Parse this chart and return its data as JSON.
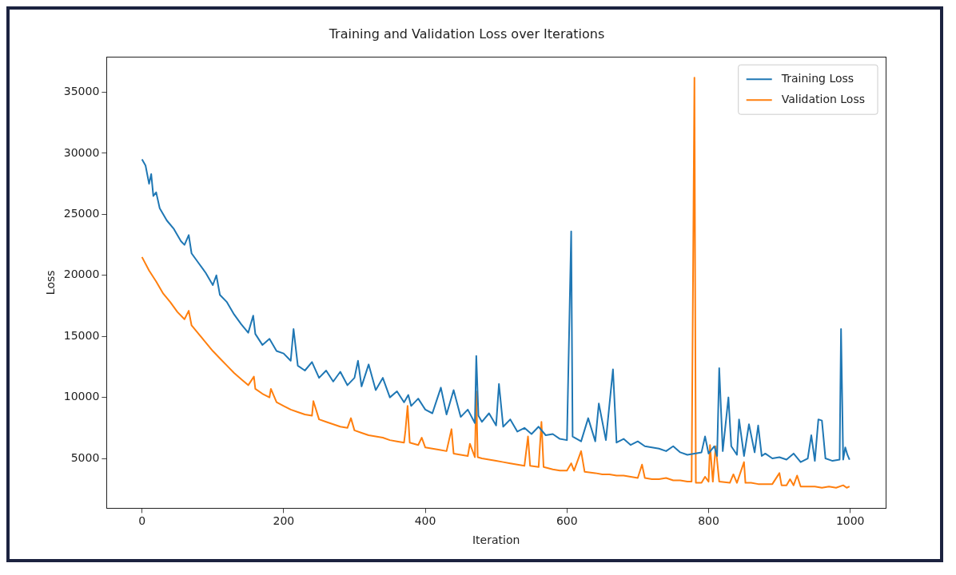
{
  "chart_data": {
    "type": "line",
    "title": "Training and Validation Loss over Iterations",
    "xlabel": "Iteration",
    "ylabel": "Loss",
    "xlim": [
      -50,
      1050
    ],
    "xticks": [
      0,
      200,
      400,
      600,
      800,
      1000
    ],
    "ylim": [
      920,
      37900
    ],
    "yticks": [
      5000,
      10000,
      15000,
      20000,
      25000,
      30000,
      35000
    ],
    "grid": false,
    "legend": "top right",
    "line_style": "solid",
    "marker": "none",
    "series": [
      {
        "name": "Training Loss",
        "color": "#1f77b4",
        "x": [
          0,
          5,
          10,
          13,
          16,
          20,
          25,
          35,
          45,
          55,
          60,
          66,
          70,
          80,
          90,
          100,
          105,
          110,
          120,
          130,
          140,
          150,
          157,
          160,
          170,
          180,
          190,
          200,
          210,
          214,
          220,
          230,
          240,
          250,
          260,
          270,
          280,
          290,
          300,
          305,
          310,
          320,
          330,
          340,
          350,
          360,
          370,
          376,
          380,
          390,
          400,
          410,
          422,
          430,
          440,
          450,
          460,
          470,
          472,
          475,
          480,
          490,
          500,
          504,
          510,
          520,
          530,
          540,
          550,
          560,
          570,
          580,
          590,
          600,
          606,
          608,
          620,
          630,
          640,
          645,
          655,
          665,
          670,
          680,
          690,
          700,
          710,
          720,
          730,
          740,
          750,
          760,
          770,
          780,
          790,
          795,
          800,
          808,
          812,
          815,
          820,
          828,
          832,
          840,
          843,
          850,
          857,
          865,
          870,
          875,
          880,
          890,
          900,
          910,
          920,
          930,
          940,
          945,
          950,
          955,
          960,
          965,
          975,
          985,
          987,
          990,
          993,
          996,
          999
        ],
        "values": [
          29500,
          29000,
          27500,
          28300,
          26500,
          26800,
          25500,
          24500,
          23800,
          22800,
          22500,
          23300,
          21800,
          21000,
          20200,
          19200,
          20000,
          18400,
          17800,
          16800,
          16000,
          15300,
          16700,
          15200,
          14300,
          14800,
          13800,
          13600,
          13000,
          15600,
          12600,
          12200,
          12900,
          11600,
          12200,
          11300,
          12100,
          11000,
          11600,
          13000,
          10900,
          12700,
          10600,
          11600,
          10000,
          10500,
          9600,
          10200,
          9300,
          9900,
          9000,
          8700,
          10800,
          8600,
          10600,
          8400,
          9000,
          7900,
          13400,
          8500,
          8000,
          8700,
          7700,
          11100,
          7600,
          8200,
          7200,
          7500,
          7000,
          7600,
          6900,
          7000,
          6600,
          6500,
          23600,
          6800,
          6400,
          8300,
          6400,
          9500,
          6500,
          12300,
          6300,
          6600,
          6100,
          6400,
          6000,
          5900,
          5800,
          5600,
          6000,
          5500,
          5300,
          5400,
          5500,
          6800,
          5400,
          6000,
          5200,
          12400,
          5600,
          10000,
          6000,
          5300,
          8200,
          5200,
          7800,
          5500,
          7700,
          5200,
          5400,
          5000,
          5100,
          4900,
          5400,
          4700,
          5000,
          6900,
          4800,
          8200,
          8100,
          5000,
          4800,
          4900,
          15600,
          4900,
          5900,
          5300,
          4900
        ]
      },
      {
        "name": "Validation Loss",
        "color": "#ff7f0e",
        "x": [
          0,
          10,
          20,
          30,
          40,
          50,
          60,
          66,
          70,
          80,
          90,
          100,
          110,
          120,
          130,
          140,
          150,
          158,
          160,
          170,
          180,
          182,
          190,
          200,
          210,
          220,
          230,
          240,
          242,
          250,
          260,
          270,
          280,
          290,
          295,
          300,
          310,
          320,
          330,
          340,
          350,
          360,
          370,
          372,
          375,
          378,
          390,
          395,
          400,
          410,
          420,
          430,
          437,
          440,
          450,
          460,
          463,
          470,
          472,
          474,
          480,
          490,
          500,
          510,
          520,
          530,
          540,
          545,
          548,
          560,
          564,
          567,
          580,
          590,
          600,
          606,
          610,
          620,
          625,
          640,
          650,
          660,
          670,
          680,
          690,
          700,
          706,
          710,
          720,
          730,
          740,
          750,
          760,
          770,
          776,
          780,
          782,
          790,
          795,
          800,
          802,
          806,
          810,
          815,
          830,
          835,
          840,
          850,
          852,
          860,
          870,
          880,
          890,
          900,
          903,
          910,
          915,
          920,
          925,
          930,
          940,
          950,
          960,
          970,
          980,
          990,
          995,
          999
        ],
        "values": [
          21500,
          20400,
          19500,
          18500,
          17800,
          17000,
          16400,
          17100,
          15900,
          15200,
          14500,
          13800,
          13200,
          12600,
          12000,
          11500,
          11000,
          11700,
          10700,
          10300,
          10000,
          10700,
          9600,
          9300,
          9000,
          8800,
          8600,
          8500,
          9700,
          8200,
          8000,
          7800,
          7600,
          7500,
          8300,
          7300,
          7100,
          6900,
          6800,
          6700,
          6500,
          6400,
          6300,
          7300,
          9300,
          6300,
          6100,
          6700,
          5900,
          5800,
          5700,
          5600,
          7400,
          5400,
          5300,
          5200,
          6200,
          5100,
          10500,
          5100,
          5000,
          4900,
          4800,
          4700,
          4600,
          4500,
          4400,
          6800,
          4400,
          4300,
          8000,
          4300,
          4100,
          4000,
          4000,
          4600,
          4000,
          5600,
          3900,
          3800,
          3700,
          3700,
          3600,
          3600,
          3500,
          3400,
          4500,
          3400,
          3300,
          3300,
          3400,
          3200,
          3200,
          3100,
          3100,
          36200,
          3000,
          3000,
          3500,
          3100,
          6100,
          3100,
          6000,
          3100,
          3000,
          3700,
          3000,
          4700,
          3000,
          3000,
          2900,
          2900,
          2900,
          3800,
          2800,
          2800,
          3300,
          2800,
          3600,
          2700,
          2700,
          2700,
          2600,
          2700,
          2600,
          2800,
          2600,
          2700
        ]
      }
    ]
  }
}
